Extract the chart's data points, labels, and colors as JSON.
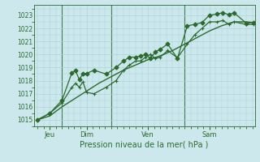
{
  "title": "Pression niveau de la mer( hPa )",
  "bg_color": "#cce8ed",
  "grid_color": "#aad4da",
  "line_color": "#2d6a2d",
  "ylim": [
    1014.5,
    1023.8
  ],
  "yticks": [
    1015,
    1016,
    1017,
    1018,
    1019,
    1020,
    1021,
    1022,
    1023
  ],
  "xlim": [
    -0.15,
    8.85
  ],
  "day_positions": [
    0.5,
    2.0,
    4.5,
    7.0
  ],
  "day_labels": [
    "Jeu",
    "Dim",
    "Ven",
    "Sam"
  ],
  "vline_positions": [
    1.0,
    3.0,
    6.0
  ],
  "s1_x": [
    0.0,
    0.5,
    1.0,
    1.4,
    1.55,
    1.7,
    1.85,
    2.0,
    2.3,
    2.8,
    3.2,
    3.5,
    3.75,
    4.0,
    4.2,
    4.4,
    4.6,
    4.8,
    5.0,
    5.3,
    5.7,
    6.1,
    6.4,
    6.7,
    7.0,
    7.3,
    7.55,
    7.8,
    8.0,
    8.5,
    8.8
  ],
  "s1_y": [
    1015.0,
    1015.5,
    1016.5,
    1018.6,
    1018.75,
    1018.1,
    1018.5,
    1018.55,
    1018.8,
    1018.5,
    1019.0,
    1019.5,
    1019.8,
    1019.8,
    1019.9,
    1020.0,
    1019.7,
    1020.2,
    1020.4,
    1020.8,
    1019.7,
    1022.2,
    1022.3,
    1022.45,
    1023.0,
    1023.1,
    1023.2,
    1023.05,
    1023.2,
    1022.4,
    1022.45
  ],
  "s2_x": [
    0.0,
    0.5,
    1.0,
    1.4,
    1.55,
    1.7,
    1.85,
    2.0,
    2.3,
    2.8,
    3.2,
    3.5,
    3.75,
    4.0,
    4.2,
    4.4,
    4.6,
    4.8,
    5.0,
    5.3,
    5.7,
    6.1,
    6.4,
    6.7,
    7.0,
    7.3,
    7.55,
    7.8,
    8.0,
    8.5,
    8.8
  ],
  "s2_y": [
    1015.0,
    1015.5,
    1016.3,
    1017.5,
    1017.8,
    1017.5,
    1017.9,
    1017.1,
    1017.0,
    1017.5,
    1018.0,
    1018.8,
    1019.2,
    1019.5,
    1019.5,
    1019.8,
    1020.0,
    1019.7,
    1019.8,
    1020.3,
    1019.75,
    1020.8,
    1021.5,
    1022.0,
    1022.5,
    1022.5,
    1022.6,
    1022.3,
    1022.5,
    1022.3,
    1022.3
  ],
  "s3_x": [
    0.0,
    0.5,
    1.0,
    1.5,
    2.0,
    2.5,
    3.0,
    3.5,
    4.0,
    4.5,
    5.0,
    5.5,
    6.0,
    6.5,
    7.0,
    7.5,
    8.0,
    8.5,
    8.8
  ],
  "s3_y": [
    1015.0,
    1015.3,
    1016.0,
    1016.6,
    1017.2,
    1017.8,
    1018.3,
    1018.8,
    1019.2,
    1019.6,
    1019.9,
    1020.3,
    1020.8,
    1021.3,
    1021.8,
    1022.2,
    1022.5,
    1022.5,
    1022.45
  ]
}
